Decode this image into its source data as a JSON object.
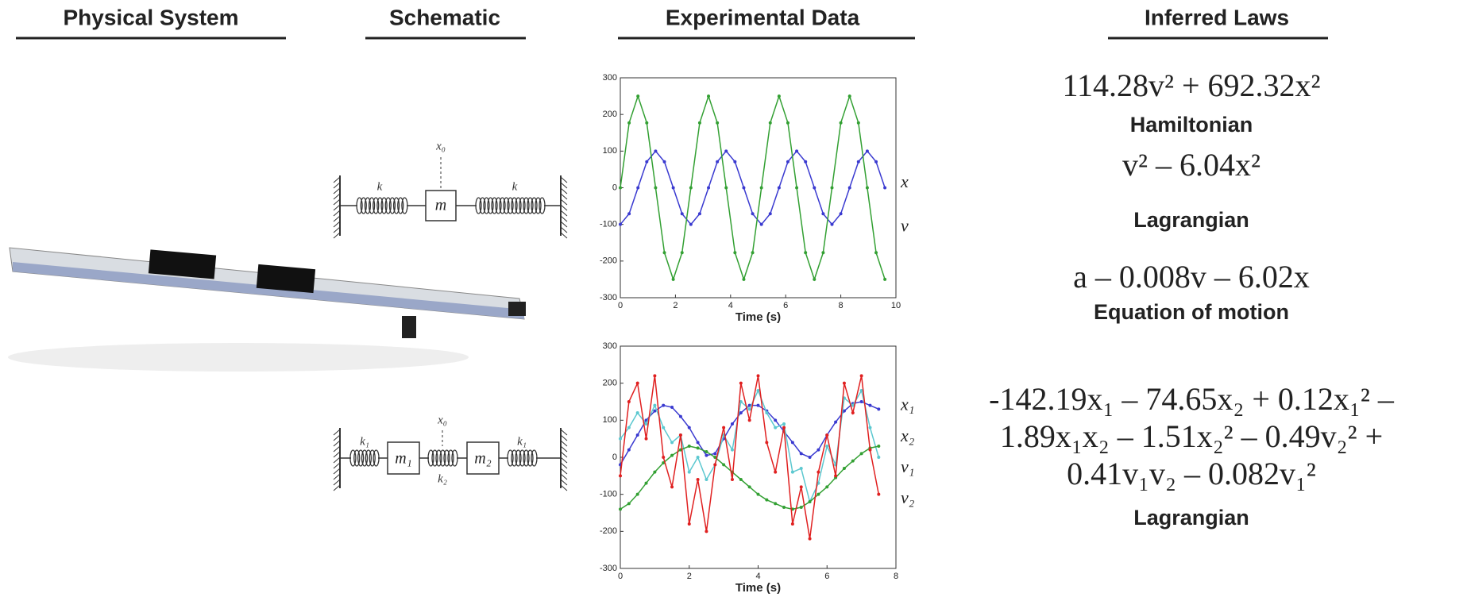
{
  "headers": [
    "Physical System",
    "Schematic",
    "Experimental Data",
    "Inferred Laws"
  ],
  "schematic": {
    "single": {
      "spring": "k",
      "mass": "m",
      "position": "x₀"
    },
    "coupled": {
      "outer_spring": "k₁",
      "mass_1": "m₁",
      "middle_spring": "k₂",
      "mass_2": "m₂",
      "position": "x₀"
    }
  },
  "laws": [
    {
      "lines": [
        "114.28v² + 692.32x²"
      ],
      "label": "Hamiltonian"
    },
    {
      "lines": [
        "v² – 6.04x²"
      ],
      "label": "Lagrangian"
    },
    {
      "lines": [
        "a – 0.008v – 6.02x"
      ],
      "label": "Equation of motion"
    },
    {
      "lines": [
        "-142.19x₁ – 74.65x₂ + 0.12x₁² –",
        "1.89x₁x₂ – 1.51x₂² – 0.49v₂² +",
        "0.41v₁v₂ – 0.082v₁²"
      ],
      "label": "Lagrangian"
    }
  ],
  "chart_data": [
    {
      "type": "line",
      "x_label": "Time (s)",
      "x": [
        0,
        0.32,
        0.64,
        0.96,
        1.28,
        1.6,
        1.92,
        2.24,
        2.56,
        2.88,
        3.2,
        3.52,
        3.84,
        4.16,
        4.48,
        4.8,
        5.12,
        5.44,
        5.76,
        6.08,
        6.4,
        6.72,
        7.04,
        7.36,
        7.68,
        8,
        8.32,
        8.64,
        8.96,
        9.28,
        9.6
      ],
      "series": [
        {
          "name": "x",
          "color": "#3a3ad0",
          "values": [
            -100,
            -71,
            0,
            71,
            100,
            71,
            0,
            -71,
            -100,
            -71,
            0,
            71,
            100,
            71,
            0,
            -71,
            -100,
            -71,
            0,
            71,
            100,
            71,
            0,
            -71,
            -100,
            -71,
            0,
            71,
            100,
            71,
            0
          ]
        },
        {
          "name": "v",
          "color": "#33a033",
          "values": [
            0,
            177,
            250,
            177,
            0,
            -177,
            -250,
            -177,
            0,
            177,
            250,
            177,
            0,
            -177,
            -250,
            -177,
            0,
            177,
            250,
            177,
            0,
            -177,
            -250,
            -177,
            0,
            177,
            250,
            177,
            0,
            -177,
            -250
          ]
        }
      ],
      "xlim": [
        0,
        10
      ],
      "xticks": [
        0,
        2,
        4,
        6,
        8,
        10
      ],
      "ylim": [
        -300,
        300
      ],
      "yticks": [
        -300,
        -200,
        -100,
        0,
        100,
        200,
        300
      ]
    },
    {
      "type": "line",
      "x_label": "Time (s)",
      "x": [
        0,
        0.25,
        0.5,
        0.75,
        1,
        1.25,
        1.5,
        1.75,
        2,
        2.25,
        2.5,
        2.75,
        3,
        3.25,
        3.5,
        3.75,
        4,
        4.25,
        4.5,
        4.75,
        5,
        5.25,
        5.5,
        5.75,
        6,
        6.25,
        6.5,
        6.75,
        7,
        7.25,
        7.5
      ],
      "series": [
        {
          "name": "x₁",
          "color": "#3a3ad0",
          "values": [
            -20,
            20,
            60,
            100,
            125,
            140,
            135,
            110,
            80,
            40,
            5,
            10,
            50,
            90,
            120,
            140,
            140,
            125,
            100,
            70,
            40,
            10,
            0,
            20,
            60,
            95,
            125,
            145,
            150,
            140,
            130
          ]
        },
        {
          "name": "x₂",
          "color": "#5cc8d0",
          "values": [
            50,
            80,
            120,
            90,
            140,
            80,
            40,
            60,
            -40,
            0,
            -60,
            -20,
            60,
            20,
            150,
            130,
            180,
            120,
            80,
            90,
            -40,
            -30,
            -120,
            -70,
            30,
            -20,
            160,
            140,
            180,
            80,
            0
          ]
        },
        {
          "name": "v₁",
          "color": "#33a033",
          "values": [
            -140,
            -125,
            -100,
            -70,
            -40,
            -15,
            5,
            20,
            30,
            25,
            15,
            0,
            -20,
            -40,
            -60,
            -80,
            -100,
            -115,
            -125,
            -135,
            -140,
            -135,
            -120,
            -100,
            -80,
            -55,
            -30,
            -10,
            10,
            25,
            30
          ]
        },
        {
          "name": "v₂",
          "color": "#e02020",
          "values": [
            -50,
            150,
            200,
            50,
            220,
            0,
            -80,
            60,
            -180,
            -60,
            -200,
            -20,
            80,
            -60,
            200,
            100,
            220,
            40,
            -40,
            80,
            -180,
            -80,
            -220,
            -40,
            60,
            -50,
            200,
            120,
            220,
            20,
            -100
          ]
        }
      ],
      "xlim": [
        0,
        8
      ],
      "xticks": [
        0,
        2,
        4,
        6,
        8
      ],
      "ylim": [
        -300,
        300
      ],
      "yticks": [
        -300,
        -200,
        -100,
        0,
        100,
        200,
        300
      ]
    }
  ]
}
